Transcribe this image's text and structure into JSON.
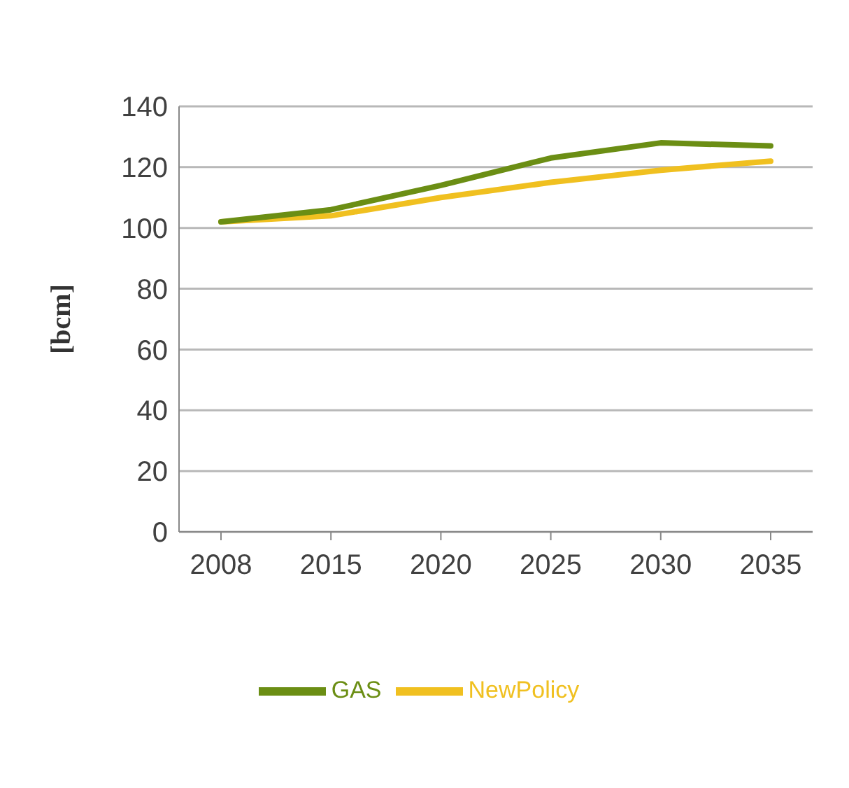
{
  "chart_data": {
    "type": "line",
    "ylabel": "[bcm]",
    "categories": [
      "2008",
      "2015",
      "2020",
      "2025",
      "2030",
      "2035"
    ],
    "series": [
      {
        "name": "NewPolicy",
        "color": "#f0c020",
        "values": [
          102,
          104,
          110,
          115,
          119,
          122
        ]
      },
      {
        "name": "GAS",
        "color": "#6b8e14",
        "values": [
          102,
          106,
          114,
          123,
          128,
          127
        ]
      }
    ],
    "ylim": [
      0,
      140
    ],
    "yticks": [
      0,
      20,
      40,
      60,
      80,
      100,
      120,
      140
    ],
    "grid": "y",
    "legend": "bottom",
    "marker": "none"
  }
}
